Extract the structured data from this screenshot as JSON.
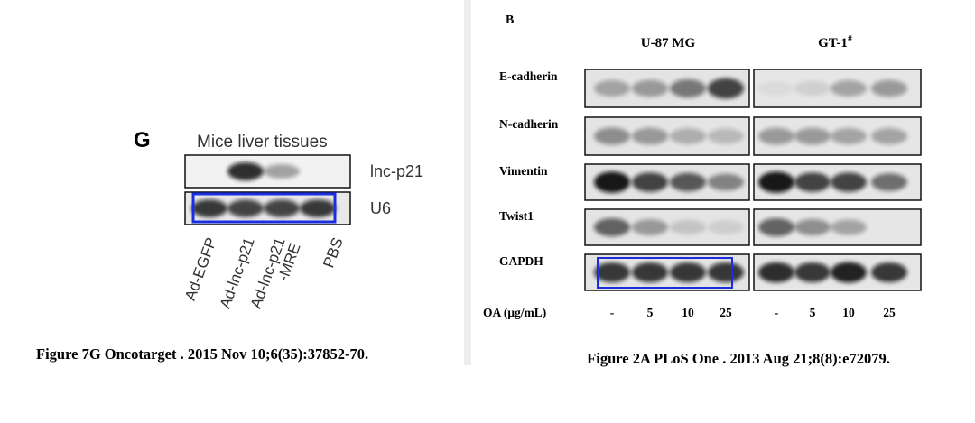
{
  "left": {
    "panel": "G",
    "title": "Mice liver tissues",
    "rows": [
      "lnc-p21",
      "U6"
    ],
    "lanes": [
      [
        "Ad-EGFP"
      ],
      [
        "Ad-lnc-p21"
      ],
      [
        "Ad-lnc-p21",
        "-MRE"
      ],
      [
        "PBS"
      ]
    ],
    "caption": "Figure 7G Oncotarget . 2015 Nov 10;6(35):37852-70."
  },
  "right": {
    "panel": "B",
    "groups": [
      {
        "name": "U-87 MG"
      },
      {
        "name": "GT-1",
        "sup": "#"
      }
    ],
    "rows": [
      "E-cadherin",
      "N-cadherin",
      "Vimentin",
      "Twist1",
      "GAPDH"
    ],
    "dose_label": "OA (μg/mL)",
    "doses": [
      "-",
      "5",
      "10",
      "25"
    ],
    "caption": "Figure 2A PLoS One . 2013 Aug 21;8(8):e72079."
  }
}
